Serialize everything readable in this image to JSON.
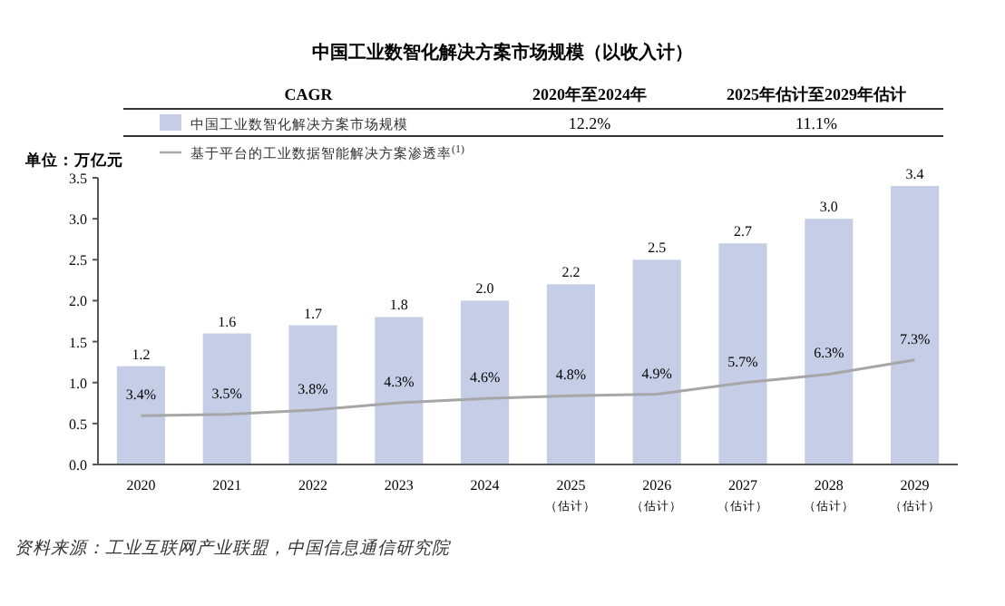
{
  "chart_data": {
    "type": "bar",
    "title": "中国工业数智化解决方案市场规模（以收入计）",
    "ylabel": "单位：万亿元",
    "categories": [
      "2020",
      "2021",
      "2022",
      "2023",
      "2024",
      "2025\n（估计）",
      "2026\n（估计）",
      "2027\n（估计）",
      "2028\n（估计）",
      "2029\n（估计）"
    ],
    "series": [
      {
        "name": "中国工业数智化解决方案市场规模",
        "color": "#c5cee6",
        "values": [
          1.2,
          1.6,
          1.7,
          1.8,
          2.0,
          2.2,
          2.5,
          2.7,
          3.0,
          3.4
        ],
        "value_labels": [
          "1.2",
          "1.6",
          "1.7",
          "1.8",
          "2.0",
          "2.2",
          "2.5",
          "2.7",
          "3.0",
          "3.4"
        ]
      },
      {
        "name": "基于平台的工业数据智能解决方案渗透率$^{(1)}$",
        "type": "line",
        "axis": "y2",
        "color": "#a6a6a6",
        "values": [
          3.4,
          3.5,
          3.8,
          4.3,
          4.6,
          4.8,
          4.9,
          5.7,
          6.3,
          7.3
        ],
        "value_labels": [
          "3.4%",
          "3.5%",
          "3.8%",
          "4.3%",
          "4.6%",
          "4.8%",
          "4.9%",
          "5.7%",
          "6.3%",
          "7.3%"
        ]
      }
    ],
    "ylim": [
      0,
      3.5
    ],
    "yticks": [
      {
        "value": 0,
        "label": "0.0"
      },
      0.5,
      {
        "value": 1,
        "label": "1.0"
      },
      1.5,
      {
        "value": 2,
        "label": "2.0"
      },
      2.5,
      {
        "value": 3,
        "label": "3.0"
      },
      3.5
    ],
    "y2lim": [
      0,
      20
    ],
    "legend": "top left",
    "annotations": [
      "CAGR",
      "2020年至2024年",
      "2025年估计至2029年估计",
      "12.2%",
      "11.1%",
      "资料来源：工业互联网产业联盟，中国信息通信研究院"
    ]
  }
}
